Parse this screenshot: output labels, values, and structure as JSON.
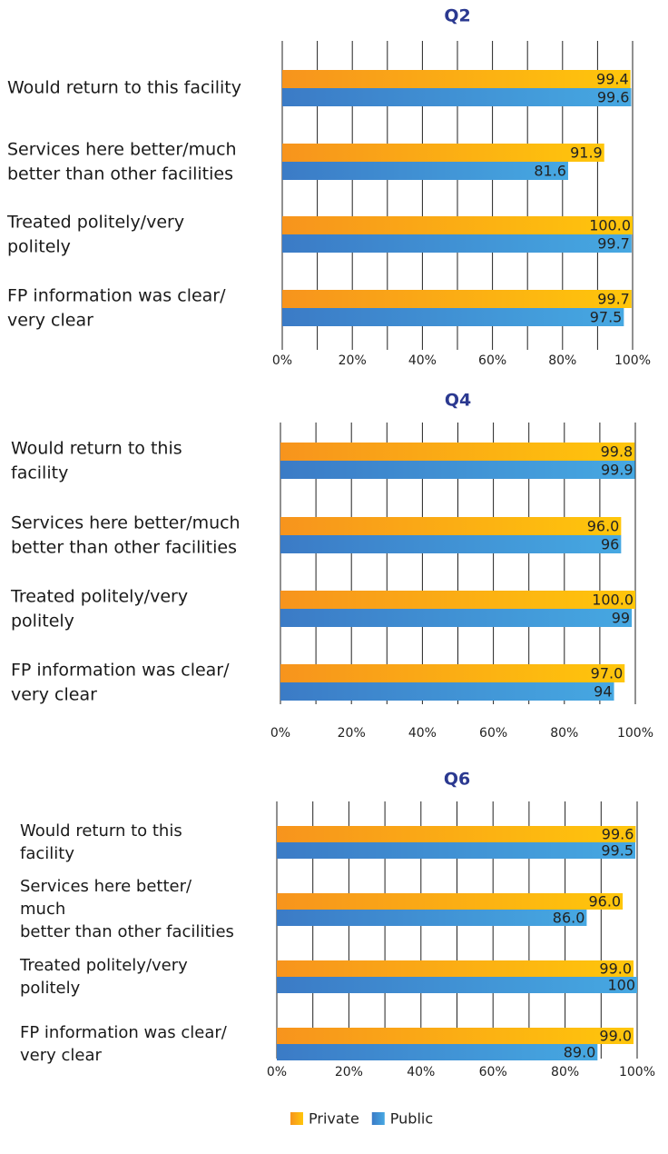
{
  "chart_data": [
    {
      "type": "bar",
      "orientation": "horizontal",
      "title": "Q2",
      "categories": [
        "Would return to this facility",
        "Services here better/much\nbetter than other facilities",
        "Treated politely/very\npolitely",
        "FP information was clear/\nvery clear"
      ],
      "series": [
        {
          "name": "Private",
          "color": [
            "#f7941d",
            "#ffc60b"
          ],
          "values": [
            99.4,
            91.9,
            100,
            99.7
          ],
          "value_labels": [
            "99.4",
            "91.9",
            "100.0",
            "99.7"
          ]
        },
        {
          "name": "Public",
          "color": [
            "#3b7bc6",
            "#46a8e2"
          ],
          "values": [
            99.6,
            81.6,
            99.7,
            97.5
          ],
          "value_labels": [
            "99.6",
            "81.6",
            "99.7",
            "97.5"
          ]
        }
      ],
      "xlim": [
        0,
        100
      ],
      "xticks": [
        {
          "value": 0,
          "label": "0%"
        },
        {
          "value": 20,
          "label": "20%"
        },
        {
          "value": 40,
          "label": "40%"
        },
        {
          "value": 60,
          "label": "60%"
        },
        {
          "value": 80,
          "label": "80%"
        },
        {
          "value": 100,
          "label": "100%"
        }
      ],
      "grid": true
    },
    {
      "type": "bar",
      "orientation": "horizontal",
      "title": "Q4",
      "categories": [
        "Would return to this\nfacility",
        "Services here better/much\nbetter than other facilities",
        "Treated politely/very\npolitely",
        "FP information was clear/\nvery clear"
      ],
      "series": [
        {
          "name": "Private",
          "color": [
            "#f7941d",
            "#ffc60b"
          ],
          "values": [
            99.8,
            96,
            100,
            97
          ],
          "value_labels": [
            "99.8",
            "96.0",
            "100.0",
            "97.0"
          ]
        },
        {
          "name": "Public",
          "color": [
            "#3b7bc6",
            "#46a8e2"
          ],
          "values": [
            99.9,
            96,
            99,
            94
          ],
          "value_labels": [
            "99.9",
            "96",
            "99",
            "94"
          ]
        }
      ],
      "xlim": [
        0,
        100
      ],
      "xticks": [
        {
          "value": 0,
          "label": "0%"
        },
        {
          "value": 20,
          "label": "20%"
        },
        {
          "value": 40,
          "label": "40%"
        },
        {
          "value": 60,
          "label": "60%"
        },
        {
          "value": 80,
          "label": "80%"
        },
        {
          "value": 100,
          "label": "100%"
        }
      ],
      "grid": true
    },
    {
      "type": "bar",
      "orientation": "horizontal",
      "title": "Q6",
      "categories": [
        "Would return to this\nfacility",
        "Services here better/\nmuch\nbetter than other facilities",
        "Treated politely/very\npolitely",
        "FP information was clear/\nvery clear"
      ],
      "series": [
        {
          "name": "Private",
          "color": [
            "#f7941d",
            "#ffc60b"
          ],
          "values": [
            99.6,
            96,
            99,
            99
          ],
          "value_labels": [
            "99.6",
            "96.0",
            "99.0",
            "99.0"
          ]
        },
        {
          "name": "Public",
          "color": [
            "#3b7bc6",
            "#46a8e2"
          ],
          "values": [
            99.5,
            86,
            100,
            89
          ],
          "value_labels": [
            "99.5",
            "86.0",
            "100",
            "89.0"
          ]
        }
      ],
      "xlim": [
        0,
        100
      ],
      "xticks": [
        {
          "value": 0,
          "label": "0%"
        },
        {
          "value": 20,
          "label": "20%"
        },
        {
          "value": 40,
          "label": "40%"
        },
        {
          "value": 60,
          "label": "60%"
        },
        {
          "value": 80,
          "label": "80%"
        },
        {
          "value": 100,
          "label": "100%"
        }
      ],
      "grid": true,
      "legend": "bottom"
    }
  ]
}
